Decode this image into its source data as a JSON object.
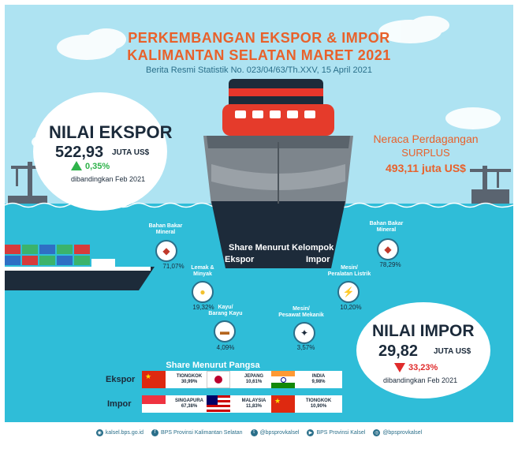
{
  "header": {
    "title_line1": "PERKEMBANGAN EKSPOR & IMPOR",
    "title_line2": "KALIMANTAN SELATAN MARET 2021",
    "subtitle": "Berita Resmi Statistik No. 023/04/63/Th.XXV, 15 April 2021"
  },
  "ekspor": {
    "label": "NILAI EKSPOR",
    "value": "522,93",
    "unit": "JUTA US$",
    "change": "0,35%",
    "compare": "dibandingkan Feb 2021"
  },
  "impor": {
    "label": "NILAI IMPOR",
    "value": "29,82",
    "unit": "JUTA US$",
    "change": "33,23%",
    "compare": "dibandingkan Feb 2021"
  },
  "neraca": {
    "line1": "Neraca Perdagangan",
    "line2": "SURPLUS",
    "value": "493,11 juta US$"
  },
  "share_kelompok": {
    "title": "Share Menurut Kelompok",
    "ekspor_label": "Ekspor",
    "impor_label": "Impor",
    "ekspor_items": [
      {
        "label_1": "Bahan Bakar",
        "label_2": "Mineral",
        "value": "71,07%"
      },
      {
        "label_1": "Lemak &",
        "label_2": "Minyak",
        "value": "19,32%"
      },
      {
        "label_1": "Kayu/",
        "label_2": "Barang Kayu",
        "value": "4,09%"
      }
    ],
    "impor_items": [
      {
        "label_1": "Bahan Bakar",
        "label_2": "Mineral",
        "value": "78,29%"
      },
      {
        "label_1": "Mesin/",
        "label_2": "Peralatan Listrik",
        "value": "10,20%"
      },
      {
        "label_1": "Mesin/",
        "label_2": "Pesawat Mekanik",
        "value": "3,57%"
      }
    ]
  },
  "share_pangsa": {
    "title": "Share Menurut Pangsa",
    "ekspor_label": "Ekspor",
    "impor_label": "Impor",
    "ekspor": [
      {
        "country": "TIONGKOK",
        "value": "30,99%"
      },
      {
        "country": "JEPANG",
        "value": "10,61%"
      },
      {
        "country": "INDIA",
        "value": "9,98%"
      }
    ],
    "impor": [
      {
        "country": "SINGAPURA",
        "value": "67,38%"
      },
      {
        "country": "MALAYSIA",
        "value": "11,83%"
      },
      {
        "country": "TIONGKOK",
        "value": "10,90%"
      }
    ]
  },
  "footer": {
    "web": "kalsel.bps.go.id",
    "facebook": "BPS Provinsi Kalimantan Selatan",
    "twitter": "@bpsprovkalsel",
    "youtube": "BPS Provinsi Kalsel",
    "instagram": "@bpsprovkalsel"
  },
  "colors": {
    "accent": "#e8612b",
    "sea": "#2fbdd8",
    "sky": "#aee3f2",
    "up": "#2eb34a",
    "down": "#e02b2b"
  }
}
